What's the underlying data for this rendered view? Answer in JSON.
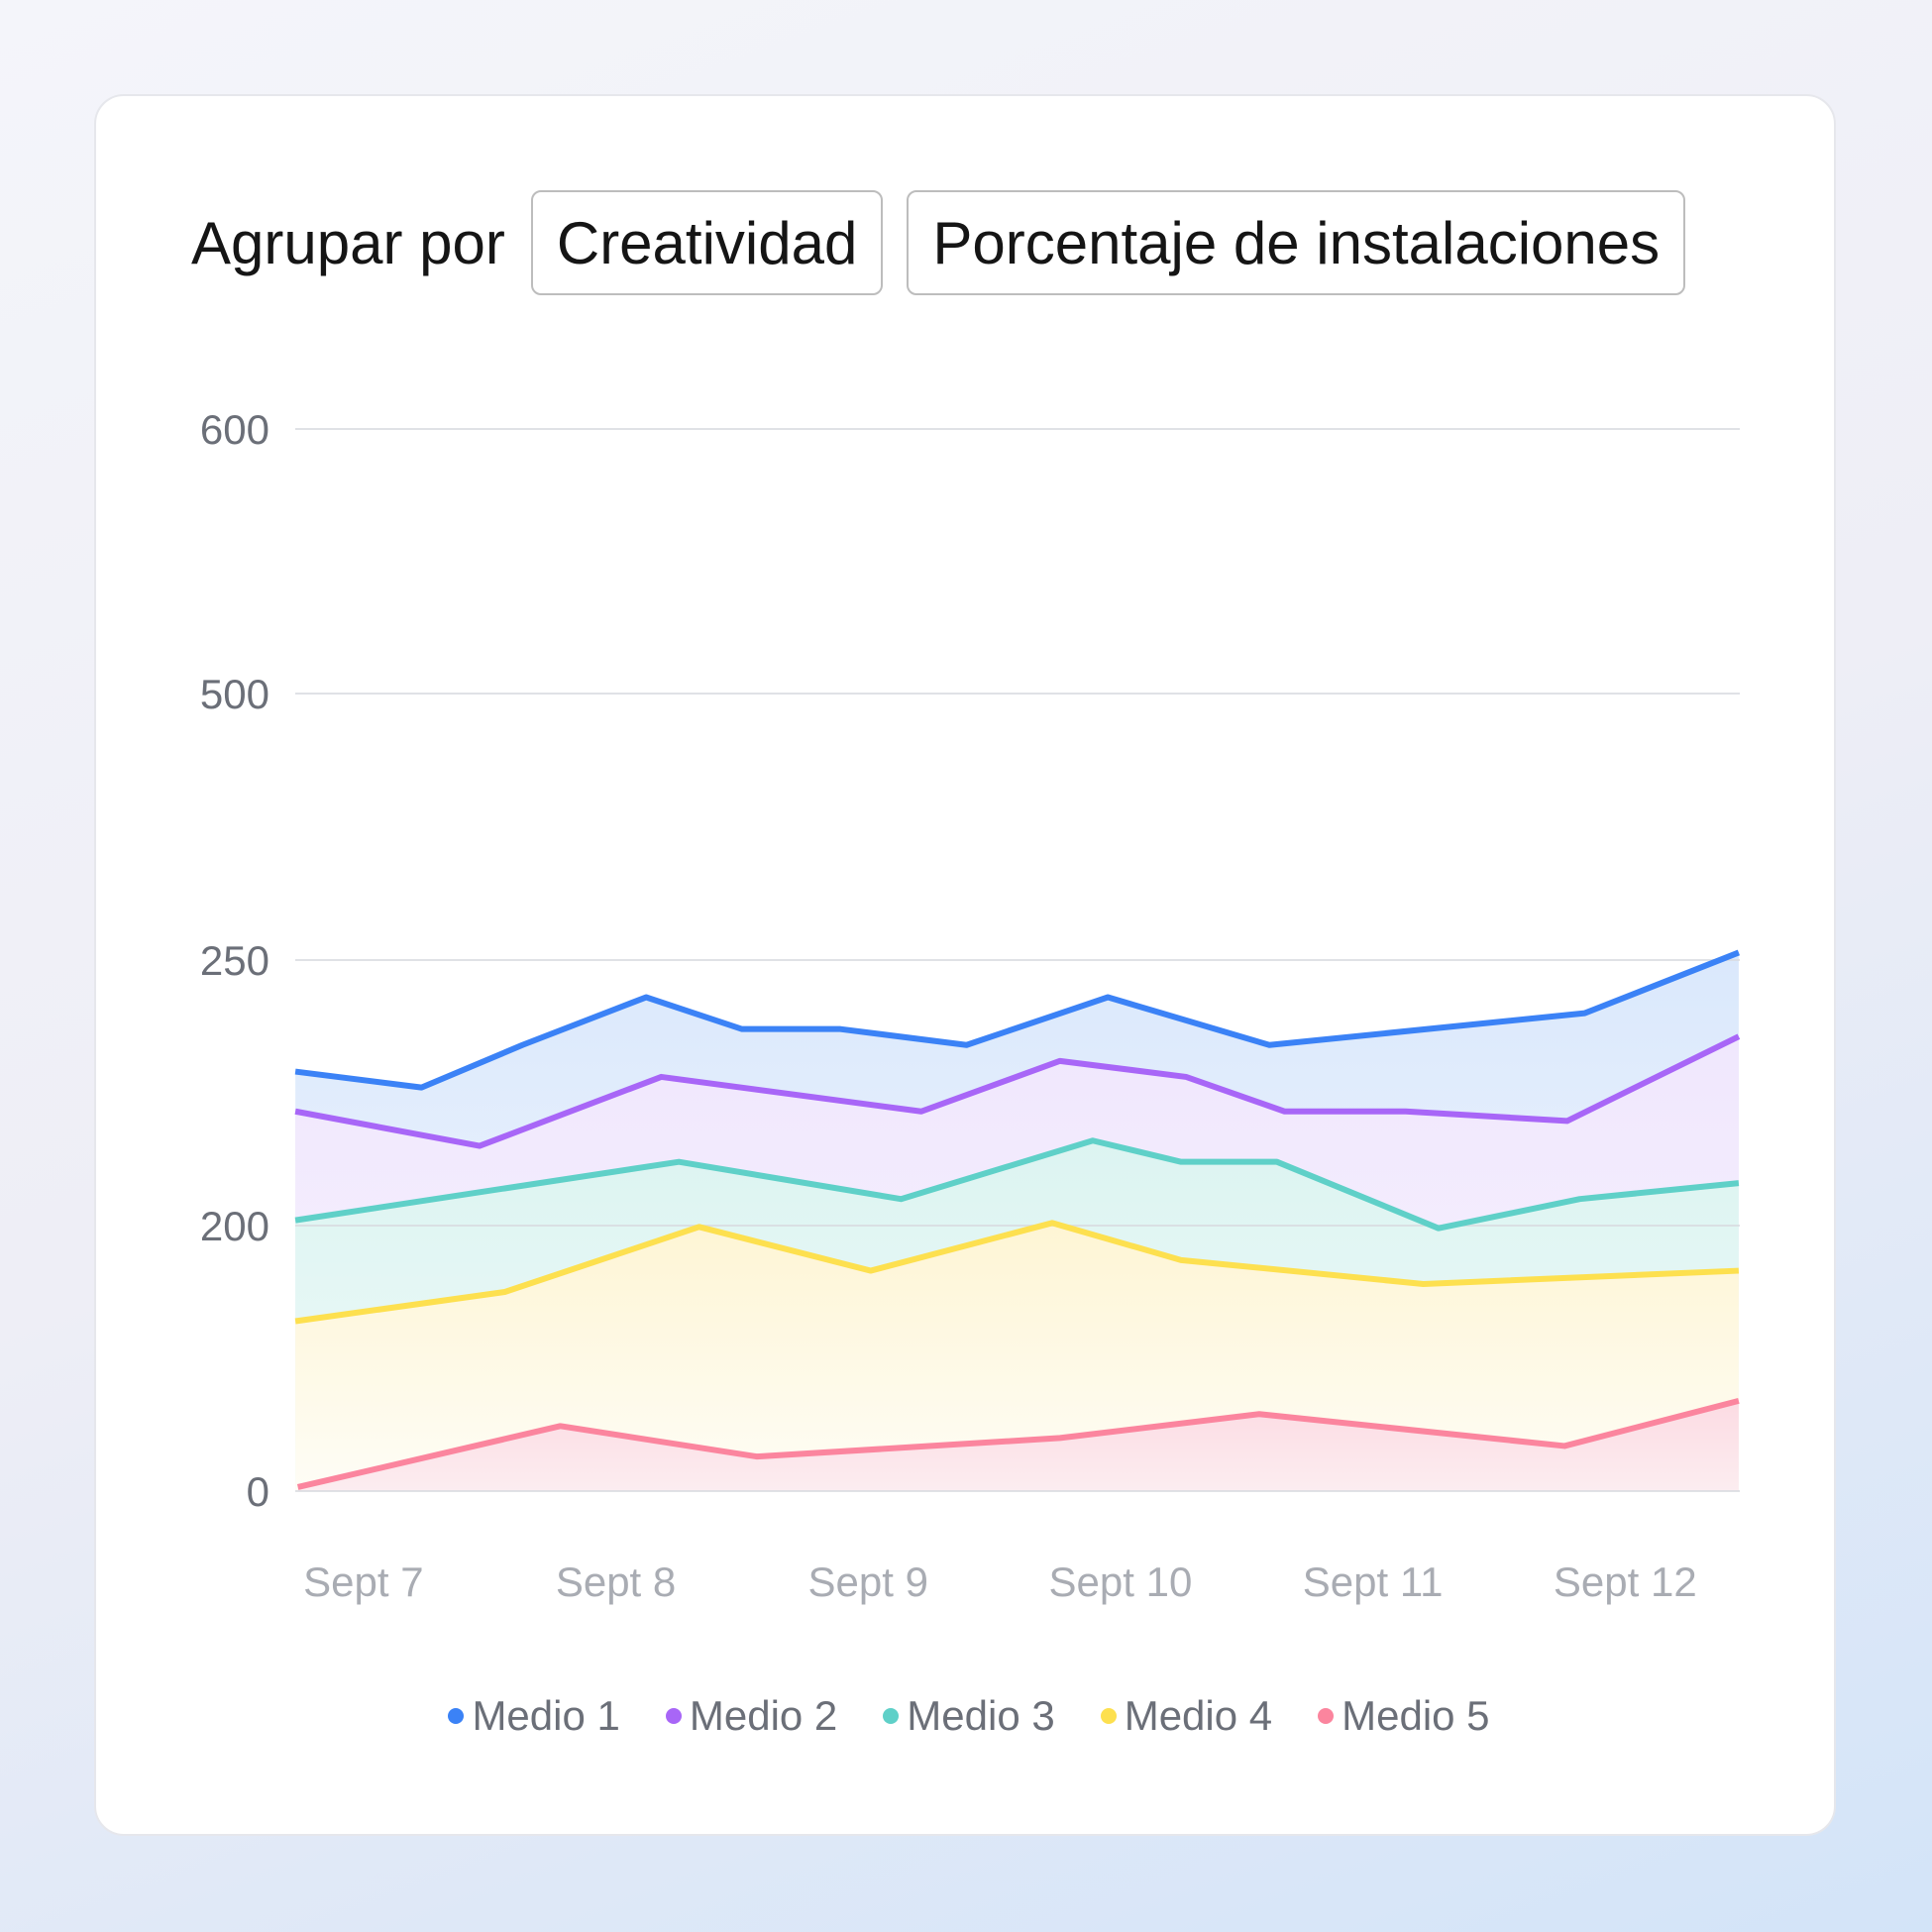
{
  "header": {
    "group_label": "Agrupar por",
    "group_value": "Creatividad",
    "metric_value": "Porcentaje de instalaciones"
  },
  "chart_data": {
    "type": "area",
    "y_ticks": [
      0,
      200,
      250,
      500,
      600
    ],
    "y_tick_labels": [
      "0",
      "200",
      "250",
      "500",
      "600"
    ],
    "x_ticks": [
      7,
      8,
      9,
      10,
      11,
      12
    ],
    "x_tick_labels": [
      "Sept 7",
      "Sept 8",
      "Sept 9",
      "Sept 10",
      "Sept 11",
      "Sept 12"
    ],
    "grid": true,
    "legend": "bottom",
    "series": [
      {
        "name": "Medio 1",
        "color": "#3b82f6",
        "fill": [
          "#dae8fc",
          "#f4f8fe"
        ],
        "x": [
          6.73,
          7.23,
          7.63,
          8.12,
          8.5,
          8.89,
          9.39,
          9.95,
          10.59,
          11.84,
          12.45
        ],
        "y": [
          229,
          226,
          234,
          243,
          237,
          237,
          234,
          243,
          234,
          240,
          257
        ]
      },
      {
        "name": "Medio 2",
        "color": "#a866f7",
        "fill": [
          "#f0e7fd",
          "#f8f3fe"
        ],
        "x": [
          6.73,
          7.46,
          8.18,
          9.21,
          9.76,
          10.26,
          10.65,
          11.13,
          11.77,
          12.45
        ],
        "y": [
          221.5,
          215,
          228,
          221.5,
          231,
          228,
          221.5,
          221.5,
          219.7,
          235.6
        ]
      },
      {
        "name": "Medio 3",
        "color": "#5fd0c8",
        "fill": [
          "#dcf4f1",
          "#effaf9"
        ],
        "x": [
          6.73,
          8.25,
          9.13,
          9.89,
          10.24,
          10.62,
          11.26,
          11.82,
          12.45
        ],
        "y": [
          201,
          212,
          205,
          216,
          212,
          212,
          198,
          205,
          208
        ]
      },
      {
        "name": "Medio 4",
        "color": "#fde04f",
        "fill": [
          "#fef5d4",
          "#fefdf6"
        ],
        "x": [
          6.73,
          7.56,
          8.33,
          9.01,
          9.73,
          10.24,
          11.2,
          12.45
        ],
        "y": [
          128,
          150,
          199,
          166,
          200.5,
          174,
          156,
          166
        ]
      },
      {
        "name": "Medio 5",
        "color": "#fb859e",
        "fill": [
          "#fcdbe3",
          "#fcedf0"
        ],
        "x": [
          6.74,
          7.78,
          8.56,
          9.76,
          10.55,
          11.76,
          12.45
        ],
        "y": [
          3,
          49,
          26,
          40,
          58,
          34,
          68
        ]
      }
    ]
  }
}
